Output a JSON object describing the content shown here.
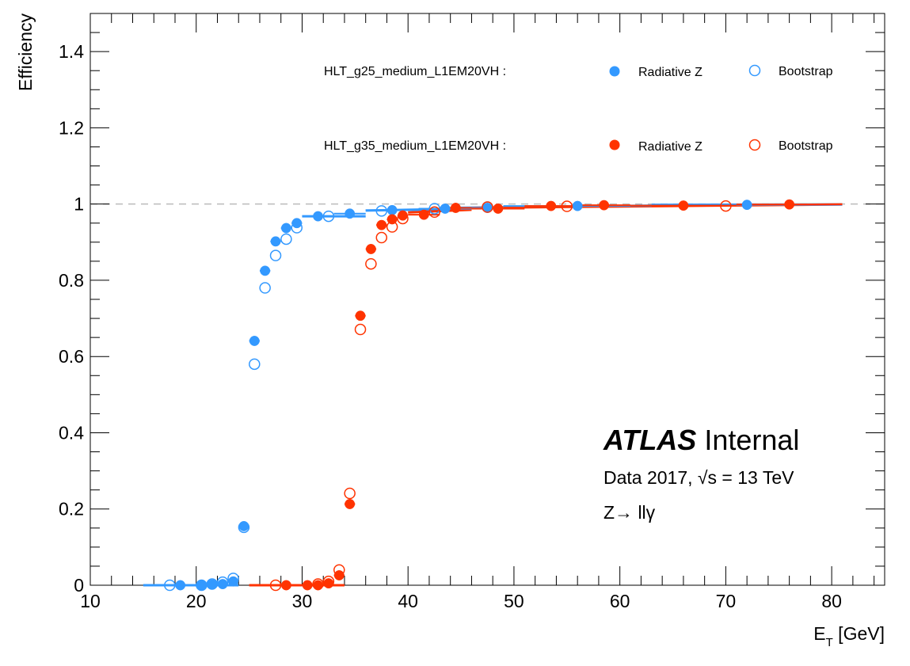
{
  "chart_data": {
    "type": "scatter",
    "title": "",
    "xlabel": "E_T [GeV]",
    "xlabel_main": "E",
    "xlabel_sub": "T",
    "xlabel_unit": " [GeV]",
    "ylabel": "Efficiency",
    "xlim": [
      10,
      85
    ],
    "ylim": [
      0,
      1.5
    ],
    "x_ticks": [
      10,
      20,
      30,
      40,
      50,
      60,
      70,
      80
    ],
    "x_tick_labels": [
      "10",
      "20",
      "30",
      "40",
      "50",
      "60",
      "70",
      "80"
    ],
    "y_ticks": [
      0,
      0.2,
      0.4,
      0.6,
      0.8,
      1,
      1.2,
      1.4
    ],
    "y_tick_labels": [
      "0",
      "0.2",
      "0.4",
      "0.6",
      "0.8",
      "1",
      "1.2",
      "1.4"
    ],
    "reference_line": 1.0,
    "legend": {
      "position": "top-right",
      "rows": [
        {
          "trigger": "HLT_g25_medium_L1EM20VH :",
          "filled_label": "Radiative Z",
          "open_label": "Bootstrap",
          "color": "#3399ff"
        },
        {
          "trigger": "HLT_g35_medium_L1EM20VH :",
          "filled_label": "Radiative Z",
          "open_label": "Bootstrap",
          "color": "#ff3300"
        }
      ]
    },
    "series": [
      {
        "name": "HLT_g25_medium_L1EM20VH Radiative Z",
        "color": "#3399ff",
        "marker": "filled",
        "points": [
          {
            "x": 18.5,
            "y": 0.0,
            "xerr": 0.5
          },
          {
            "x": 20.5,
            "y": 0.0,
            "xerr": 0.5
          },
          {
            "x": 21.5,
            "y": 0.002,
            "xerr": 0.5
          },
          {
            "x": 22.5,
            "y": 0.003,
            "xerr": 0.5
          },
          {
            "x": 23.5,
            "y": 0.01,
            "xerr": 0.5
          },
          {
            "x": 24.5,
            "y": 0.155,
            "xerr": 0.5
          },
          {
            "x": 25.5,
            "y": 0.641,
            "xerr": 0.5
          },
          {
            "x": 26.5,
            "y": 0.825,
            "xerr": 0.5
          },
          {
            "x": 27.5,
            "y": 0.902,
            "xerr": 0.5
          },
          {
            "x": 28.5,
            "y": 0.937,
            "xerr": 0.5
          },
          {
            "x": 29.5,
            "y": 0.95,
            "xerr": 0.5
          },
          {
            "x": 31.5,
            "y": 0.968,
            "xerr": 1.5
          },
          {
            "x": 34.5,
            "y": 0.975,
            "xerr": 1.5
          },
          {
            "x": 38.5,
            "y": 0.984,
            "xerr": 2.5
          },
          {
            "x": 43.5,
            "y": 0.988,
            "xerr": 2.5
          },
          {
            "x": 47.5,
            "y": 0.99,
            "xerr": 1.5
          },
          {
            "x": 56.0,
            "y": 0.995,
            "xerr": 7.0
          },
          {
            "x": 72.0,
            "y": 0.998,
            "xerr": 9.0
          }
        ]
      },
      {
        "name": "HLT_g25_medium_L1EM20VH Bootstrap",
        "color": "#3399ff",
        "marker": "open",
        "points": [
          {
            "x": 17.5,
            "y": 0.0
          },
          {
            "x": 20.5,
            "y": 0.0
          },
          {
            "x": 21.5,
            "y": 0.003
          },
          {
            "x": 22.5,
            "y": 0.008
          },
          {
            "x": 23.5,
            "y": 0.018
          },
          {
            "x": 24.5,
            "y": 0.152
          },
          {
            "x": 25.5,
            "y": 0.58
          },
          {
            "x": 26.5,
            "y": 0.78
          },
          {
            "x": 27.5,
            "y": 0.865
          },
          {
            "x": 28.5,
            "y": 0.908
          },
          {
            "x": 29.5,
            "y": 0.938
          },
          {
            "x": 32.5,
            "y": 0.968
          },
          {
            "x": 37.5,
            "y": 0.982
          },
          {
            "x": 42.5,
            "y": 0.988
          },
          {
            "x": 47.5,
            "y": 0.992
          }
        ]
      },
      {
        "name": "HLT_g35_medium_L1EM20VH Radiative Z",
        "color": "#ff3300",
        "marker": "filled",
        "points": [
          {
            "x": 28.5,
            "y": 0.0,
            "xerr": 0.5
          },
          {
            "x": 30.5,
            "y": 0.0,
            "xerr": 0.5
          },
          {
            "x": 31.5,
            "y": 0.0,
            "xerr": 0.5
          },
          {
            "x": 32.5,
            "y": 0.005,
            "xerr": 0.5
          },
          {
            "x": 33.5,
            "y": 0.026,
            "xerr": 0.5
          },
          {
            "x": 34.5,
            "y": 0.213,
            "xerr": 0.5
          },
          {
            "x": 35.5,
            "y": 0.707,
            "xerr": 0.5
          },
          {
            "x": 36.5,
            "y": 0.882,
            "xerr": 0.5
          },
          {
            "x": 37.5,
            "y": 0.945,
            "xerr": 0.5
          },
          {
            "x": 38.5,
            "y": 0.96,
            "xerr": 0.5
          },
          {
            "x": 39.5,
            "y": 0.97,
            "xerr": 0.5
          },
          {
            "x": 41.5,
            "y": 0.972,
            "xerr": 1.5
          },
          {
            "x": 44.5,
            "y": 0.99,
            "xerr": 1.5
          },
          {
            "x": 48.5,
            "y": 0.988,
            "xerr": 2.5
          },
          {
            "x": 53.5,
            "y": 0.995,
            "xerr": 2.5
          },
          {
            "x": 58.5,
            "y": 0.997,
            "xerr": 2.5
          },
          {
            "x": 66.0,
            "y": 0.996,
            "xerr": 5.0
          },
          {
            "x": 76.0,
            "y": 0.999,
            "xerr": 5.0
          }
        ]
      },
      {
        "name": "HLT_g35_medium_L1EM20VH Bootstrap",
        "color": "#ff3300",
        "marker": "open",
        "points": [
          {
            "x": 27.5,
            "y": 0.0
          },
          {
            "x": 31.5,
            "y": 0.003
          },
          {
            "x": 32.5,
            "y": 0.01
          },
          {
            "x": 33.5,
            "y": 0.04
          },
          {
            "x": 34.5,
            "y": 0.241
          },
          {
            "x": 35.5,
            "y": 0.671
          },
          {
            "x": 36.5,
            "y": 0.843
          },
          {
            "x": 37.5,
            "y": 0.912
          },
          {
            "x": 38.5,
            "y": 0.94
          },
          {
            "x": 39.5,
            "y": 0.962
          },
          {
            "x": 42.5,
            "y": 0.979
          },
          {
            "x": 47.5,
            "y": 0.992
          },
          {
            "x": 55.0,
            "y": 0.994
          },
          {
            "x": 70.0,
            "y": 0.995
          }
        ]
      }
    ],
    "fit_curves": [
      {
        "color": "#3399ff",
        "segments": [
          {
            "x": [
              15,
              24
            ],
            "y": [
              0.0,
              0.0
            ]
          },
          {
            "x": [
              30,
              36
            ],
            "y": [
              0.968,
              0.968
            ]
          },
          {
            "x": [
              36,
              44
            ],
            "y": [
              0.983,
              0.987
            ]
          },
          {
            "x": [
              44,
              63
            ],
            "y": [
              0.99,
              0.996
            ]
          },
          {
            "x": [
              63,
              81
            ],
            "y": [
              0.998,
              0.999
            ]
          }
        ]
      },
      {
        "color": "#ff3300",
        "segments": [
          {
            "x": [
              25,
              34
            ],
            "y": [
              0.0,
              0.0
            ]
          },
          {
            "x": [
              40,
              46
            ],
            "y": [
              0.978,
              0.985
            ]
          },
          {
            "x": [
              46,
              81
            ],
            "y": [
              0.99,
              0.999
            ]
          }
        ]
      }
    ],
    "annotations": {
      "experiment": "ATLAS",
      "status": "Internal",
      "dataset_prefix": "Data 2017, ",
      "sqrt_symbol": "√",
      "energy_label": "s = 13 TeV",
      "process": "Z→ llγ"
    }
  }
}
